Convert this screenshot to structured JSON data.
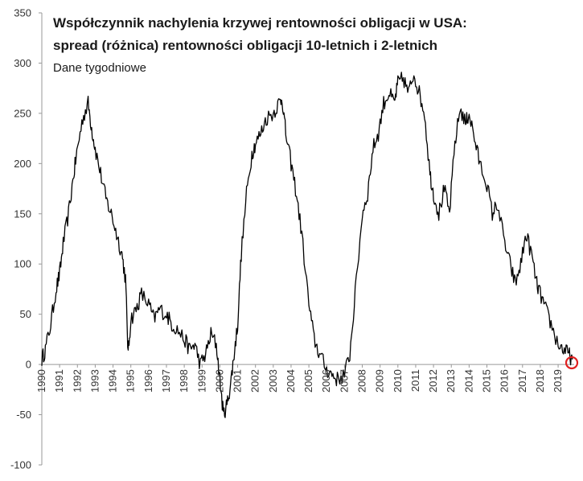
{
  "chart_data": {
    "type": "line",
    "title": "Współczynnik nachylenia krzywej rentowności obligacji w USA:",
    "title_line2": "spread (różnica) rentowności obligacji 10-letnich i 2-letnich",
    "subtitle": "Dane tygodniowe",
    "xlabel": "",
    "ylabel": "",
    "xlim": [
      1990,
      2019.9
    ],
    "ylim": [
      -100,
      350
    ],
    "grid": false,
    "legend": "none",
    "y_ticks": [
      -100,
      -50,
      0,
      50,
      100,
      150,
      200,
      250,
      300,
      350
    ],
    "x_ticks": [
      "1990",
      "1991",
      "1992",
      "1993",
      "1994",
      "1995",
      "1996",
      "1997",
      "1998",
      "1999",
      "2000",
      "2001",
      "2002",
      "2003",
      "2004",
      "2005",
      "2006",
      "2007",
      "2008",
      "2009",
      "2010",
      "2011",
      "2012",
      "2013",
      "2014",
      "2015",
      "2016",
      "2017",
      "2018",
      "2019"
    ],
    "series": [
      {
        "line_color": "#000000",
        "x": [
          1990.0,
          1990.2,
          1990.5,
          1990.8,
          1991.0,
          1991.2,
          1991.5,
          1991.8,
          1992.0,
          1992.3,
          1992.6,
          1992.8,
          1993.0,
          1993.3,
          1993.6,
          1993.9,
          1994.2,
          1994.5,
          1994.7,
          1994.85,
          1995.0,
          1995.3,
          1995.6,
          1996.0,
          1996.3,
          1996.6,
          1997.0,
          1997.3,
          1997.6,
          1998.0,
          1998.3,
          1998.6,
          1998.9,
          1999.2,
          1999.5,
          1999.8,
          2000.0,
          2000.2,
          2000.4,
          2000.6,
          2000.8,
          2001.0,
          2001.2,
          2001.5,
          2001.8,
          2002.0,
          2002.3,
          2002.6,
          2003.0,
          2003.3,
          2003.5,
          2003.7,
          2004.0,
          2004.3,
          2004.6,
          2005.0,
          2005.3,
          2005.6,
          2006.0,
          2006.3,
          2006.6,
          2007.0,
          2007.3,
          2007.6,
          2008.0,
          2008.3,
          2008.6,
          2008.9,
          2009.2,
          2009.5,
          2009.8,
          2010.0,
          2010.3,
          2010.6,
          2010.9,
          2011.2,
          2011.5,
          2011.8,
          2012.0,
          2012.3,
          2012.6,
          2012.9,
          2013.2,
          2013.5,
          2013.8,
          2014.0,
          2014.3,
          2014.6,
          2015.0,
          2015.3,
          2015.6,
          2016.0,
          2016.3,
          2016.6,
          2016.9,
          2017.2,
          2017.5,
          2017.8,
          2018.0,
          2018.3,
          2018.6,
          2019.0,
          2019.3,
          2019.6,
          2019.8
        ],
        "y": [
          5,
          15,
          40,
          75,
          90,
          120,
          150,
          190,
          215,
          245,
          260,
          235,
          215,
          190,
          165,
          150,
          130,
          110,
          85,
          10,
          45,
          55,
          70,
          60,
          45,
          55,
          50,
          40,
          35,
          25,
          15,
          20,
          0,
          10,
          30,
          20,
          -15,
          -50,
          -40,
          -20,
          10,
          40,
          110,
          170,
          210,
          220,
          230,
          245,
          250,
          260,
          265,
          230,
          200,
          170,
          130,
          60,
          25,
          10,
          -5,
          -10,
          -15,
          -10,
          10,
          70,
          150,
          170,
          215,
          230,
          260,
          270,
          260,
          280,
          285,
          270,
          290,
          270,
          250,
          190,
          170,
          150,
          175,
          150,
          220,
          255,
          240,
          250,
          225,
          200,
          180,
          150,
          160,
          120,
          100,
          80,
          100,
          130,
          110,
          80,
          70,
          55,
          40,
          20,
          15,
          10,
          5
        ]
      }
    ]
  }
}
